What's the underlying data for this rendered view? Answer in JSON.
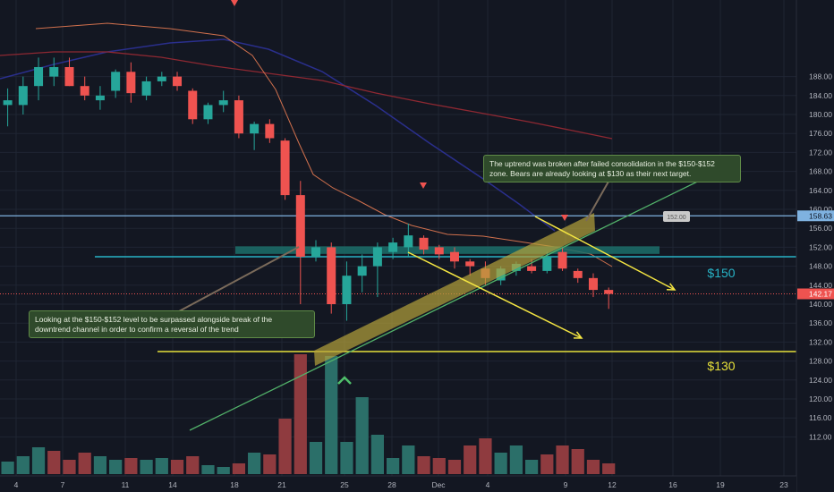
{
  "colors": {
    "background": "#131722",
    "grid": "#1f2533",
    "up": "#26a69a",
    "down": "#ef5350",
    "volume_up": "#2b6f69",
    "volume_down": "#8f3b3f",
    "zone": "#1c6e6a",
    "resistance_line": "#27b3c6",
    "top_line": "#7fb2e0",
    "support_line": "#e6e03a",
    "trend_line": "#52b26a",
    "arrow": "#f5e642",
    "channel_band": "#b5a33a",
    "ma_fast": "#d0704d",
    "ma_slow": "#8e2832",
    "ma_blue": "#2a2f8c",
    "current_price_line": "#ef5350",
    "annotation_bg": "#2f4a2b"
  },
  "chart_data": {
    "type": "candlestick",
    "y_axis_ticks": [
      112,
      116,
      120,
      124,
      128,
      132,
      136,
      140,
      144,
      148,
      152,
      156,
      160,
      164,
      168,
      172,
      176,
      180,
      184,
      188
    ],
    "x_axis_ticks": [
      "4",
      "7",
      "11",
      "14",
      "18",
      "21",
      "25",
      "28",
      "Dec",
      "4",
      "9",
      "12",
      "16",
      "19",
      "23"
    ],
    "ylim": [
      111,
      192
    ],
    "price_labels": {
      "current": "142.17",
      "resistance_top": "158.63",
      "zone_callout": "152.00"
    },
    "levels": {
      "top_resistance": 158.63,
      "resistance": 150,
      "support": 130,
      "zone_low": 150.6,
      "zone_high": 152.2,
      "current": 142.17
    },
    "level_labels": {
      "resistance": "$150",
      "support": "$130"
    },
    "candles": [
      {
        "o": 182.0,
        "h": 185.5,
        "l": 177.5,
        "c": 183.0
      },
      {
        "o": 182.0,
        "h": 188.0,
        "l": 180.0,
        "c": 186.0
      },
      {
        "o": 186.0,
        "h": 192.0,
        "l": 183.0,
        "c": 190.0
      },
      {
        "o": 188.0,
        "h": 192.0,
        "l": 186.0,
        "c": 190.0
      },
      {
        "o": 190.0,
        "h": 192.0,
        "l": 186.0,
        "c": 186.0
      },
      {
        "o": 186.0,
        "h": 188.0,
        "l": 183.0,
        "c": 184.0
      },
      {
        "o": 183.0,
        "h": 186.0,
        "l": 181.0,
        "c": 184.0
      },
      {
        "o": 185.0,
        "h": 189.5,
        "l": 183.5,
        "c": 189.0
      },
      {
        "o": 189.0,
        "h": 191.0,
        "l": 182.5,
        "c": 184.5
      },
      {
        "o": 184.0,
        "h": 188.0,
        "l": 183.0,
        "c": 187.0
      },
      {
        "o": 187.0,
        "h": 189.0,
        "l": 186.0,
        "c": 188.0
      },
      {
        "o": 188.0,
        "h": 189.0,
        "l": 185.0,
        "c": 186.0
      },
      {
        "o": 185.0,
        "h": 185.5,
        "l": 178.0,
        "c": 179.0
      },
      {
        "o": 179.0,
        "h": 182.5,
        "l": 178.0,
        "c": 182.0
      },
      {
        "o": 182.0,
        "h": 185.0,
        "l": 180.5,
        "c": 183.0
      },
      {
        "o": 183.0,
        "h": 184.0,
        "l": 175.0,
        "c": 176.0
      },
      {
        "o": 176.0,
        "h": 178.5,
        "l": 172.5,
        "c": 178.0
      },
      {
        "o": 178.0,
        "h": 179.0,
        "l": 174.0,
        "c": 175.0
      },
      {
        "o": 174.5,
        "h": 175.0,
        "l": 162.0,
        "c": 163.0
      },
      {
        "o": 163.0,
        "h": 166.0,
        "l": 140.0,
        "c": 150.0
      },
      {
        "o": 150.0,
        "h": 153.5,
        "l": 149.0,
        "c": 152.0
      },
      {
        "o": 152.0,
        "h": 153.0,
        "l": 138.0,
        "c": 140.0
      },
      {
        "o": 140.0,
        "h": 149.0,
        "l": 136.5,
        "c": 146.0
      },
      {
        "o": 146.0,
        "h": 150.5,
        "l": 142.5,
        "c": 148.0
      },
      {
        "o": 148.0,
        "h": 153.0,
        "l": 141.5,
        "c": 152.0
      },
      {
        "o": 151.0,
        "h": 154.0,
        "l": 149.5,
        "c": 153.0
      },
      {
        "o": 152.0,
        "h": 157.0,
        "l": 150.0,
        "c": 154.5
      },
      {
        "o": 154.0,
        "h": 154.5,
        "l": 150.5,
        "c": 151.5
      },
      {
        "o": 152.0,
        "h": 152.5,
        "l": 149.5,
        "c": 150.5
      },
      {
        "o": 151.0,
        "h": 152.0,
        "l": 147.5,
        "c": 149.0
      },
      {
        "o": 149.0,
        "h": 149.5,
        "l": 146.0,
        "c": 148.0
      },
      {
        "o": 147.5,
        "h": 149.0,
        "l": 144.0,
        "c": 145.5
      },
      {
        "o": 145.0,
        "h": 148.0,
        "l": 144.0,
        "c": 147.5
      },
      {
        "o": 147.0,
        "h": 149.0,
        "l": 146.0,
        "c": 148.5
      },
      {
        "o": 148.0,
        "h": 149.5,
        "l": 146.5,
        "c": 147.0
      },
      {
        "o": 147.0,
        "h": 151.0,
        "l": 146.5,
        "c": 150.0
      },
      {
        "o": 151.0,
        "h": 152.0,
        "l": 147.0,
        "c": 147.5
      },
      {
        "o": 147.0,
        "h": 147.5,
        "l": 144.5,
        "c": 145.5
      },
      {
        "o": 145.5,
        "h": 146.5,
        "l": 141.5,
        "c": 143.0
      },
      {
        "o": 143.0,
        "h": 143.5,
        "l": 139.0,
        "c": 142.17
      }
    ],
    "volume": [
      {
        "v": 0.07,
        "up": true
      },
      {
        "v": 0.1,
        "up": true
      },
      {
        "v": 0.15,
        "up": true
      },
      {
        "v": 0.13,
        "up": false
      },
      {
        "v": 0.08,
        "up": false
      },
      {
        "v": 0.12,
        "up": false
      },
      {
        "v": 0.1,
        "up": true
      },
      {
        "v": 0.08,
        "up": true
      },
      {
        "v": 0.09,
        "up": false
      },
      {
        "v": 0.08,
        "up": true
      },
      {
        "v": 0.09,
        "up": true
      },
      {
        "v": 0.08,
        "up": false
      },
      {
        "v": 0.1,
        "up": false
      },
      {
        "v": 0.05,
        "up": true
      },
      {
        "v": 0.04,
        "up": true
      },
      {
        "v": 0.06,
        "up": false
      },
      {
        "v": 0.12,
        "up": true
      },
      {
        "v": 0.11,
        "up": false
      },
      {
        "v": 0.31,
        "up": false
      },
      {
        "v": 0.67,
        "up": false
      },
      {
        "v": 0.18,
        "up": true
      },
      {
        "v": 0.66,
        "up": true
      },
      {
        "v": 0.18,
        "up": true
      },
      {
        "v": 0.43,
        "up": true
      },
      {
        "v": 0.22,
        "up": true
      },
      {
        "v": 0.09,
        "up": true
      },
      {
        "v": 0.16,
        "up": true
      },
      {
        "v": 0.1,
        "up": false
      },
      {
        "v": 0.09,
        "up": false
      },
      {
        "v": 0.08,
        "up": false
      },
      {
        "v": 0.16,
        "up": false
      },
      {
        "v": 0.2,
        "up": false
      },
      {
        "v": 0.12,
        "up": true
      },
      {
        "v": 0.16,
        "up": true
      },
      {
        "v": 0.08,
        "up": true
      },
      {
        "v": 0.11,
        "up": false
      },
      {
        "v": 0.16,
        "up": false
      },
      {
        "v": 0.14,
        "up": false
      },
      {
        "v": 0.08,
        "up": false
      },
      {
        "v": 0.06,
        "up": false
      }
    ]
  },
  "annotations": {
    "note_right": "The uptrend was broken after failed consolidation in the $150-$152 zone. Bears are already looking at $130 as their next target.",
    "note_left": "Looking at the $150-$152 level to be surpassed alongside break of the downtrend channel in order to confirm a reversal of the trend"
  }
}
